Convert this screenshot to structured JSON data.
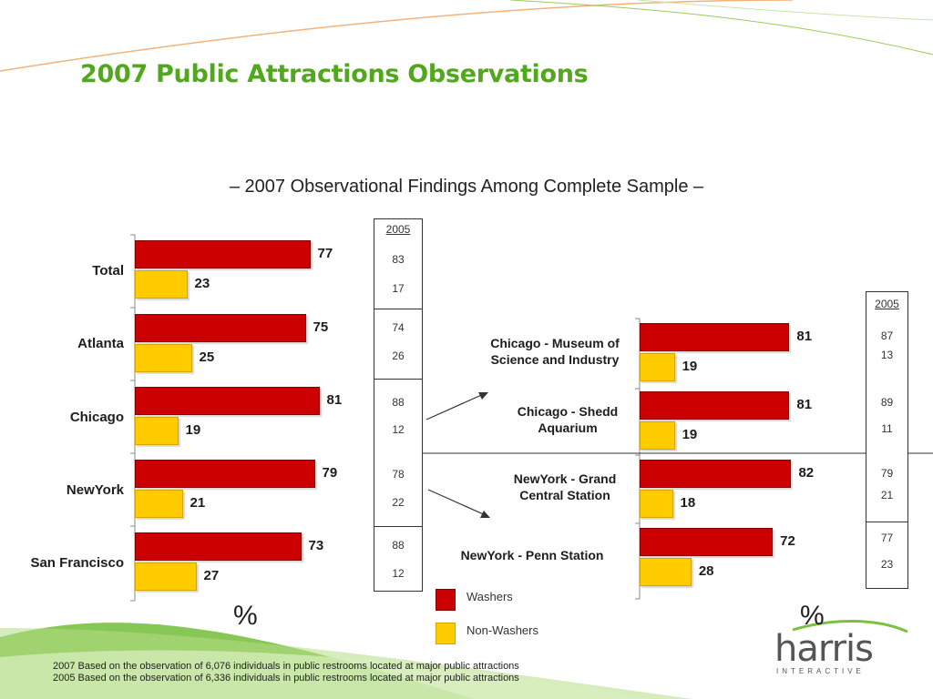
{
  "title": "2007 Public Attractions Observations",
  "subtitle": "– 2007 Observational Findings Among Complete Sample –",
  "colors": {
    "washers": "#cc0000",
    "non_washers": "#ffcc00",
    "title": "#52a81c",
    "accent_green": "#7ac142"
  },
  "chart_data": [
    {
      "type": "bar",
      "orientation": "horizontal",
      "categories": [
        "Total",
        "Atlanta",
        "Chicago",
        "NewYork",
        "San Francisco"
      ],
      "series": [
        {
          "name": "Washers",
          "values": [
            77,
            75,
            81,
            79,
            73
          ]
        },
        {
          "name": "Non-Washers",
          "values": [
            23,
            25,
            19,
            21,
            27
          ]
        }
      ],
      "comparison_2005": {
        "label": "2005",
        "washers": [
          83,
          74,
          88,
          78,
          88
        ],
        "non_washers": [
          17,
          26,
          12,
          22,
          12
        ]
      },
      "unit": "%"
    },
    {
      "type": "bar",
      "orientation": "horizontal",
      "categories": [
        "Chicago - Museum of Science and Industry",
        "Chicago - Shedd Aquarium",
        "NewYork - Grand Central Station",
        "NewYork - Penn Station"
      ],
      "series": [
        {
          "name": "Washers",
          "values": [
            81,
            81,
            82,
            72
          ]
        },
        {
          "name": "Non-Washers",
          "values": [
            19,
            19,
            18,
            28
          ]
        }
      ],
      "comparison_2005": {
        "label": "2005",
        "washers": [
          87,
          89,
          79,
          77
        ],
        "non_washers": [
          13,
          11,
          21,
          23
        ]
      },
      "unit": "%"
    }
  ],
  "legend": [
    "Washers",
    "Non-Washers"
  ],
  "footnotes": [
    "2007 Based on the observation of 6,076 individuals in public restrooms located at major public attractions",
    "2005 Based on the observation of 6,336 individuals in public restrooms located at major public attractions"
  ],
  "logo": {
    "name": "harris",
    "sub": "INTERACTIVE"
  }
}
